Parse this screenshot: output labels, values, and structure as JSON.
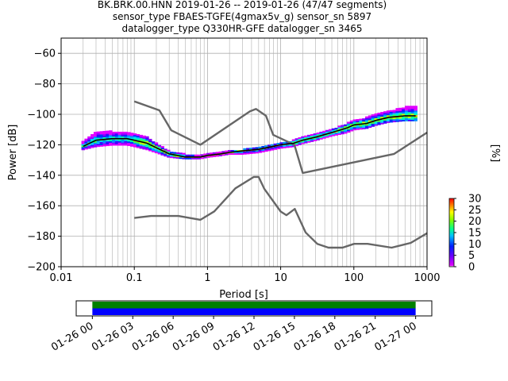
{
  "title_lines": [
    "BK.BRK.00.HNN   2019-01-26 -- 2019-01-26  (47/47 segments)",
    "sensor_type FBAES-TGFE(4gmax5v_g) sensor_sn 5897",
    "datalogger_type Q330HR-GFE datalogger_sn 3465"
  ],
  "colors": {
    "noise_model": "#666666",
    "mode_line": "#000000",
    "grid": "#b0b0b0",
    "coverage_top": "#008000",
    "coverage_bottom": "#0000ff"
  },
  "chart_data": [
    {
      "type": "heatmap",
      "subtype": "probabilistic power spectral density",
      "xlabel": "Period [s]",
      "ylabel": "Power [dB]",
      "xscale": "log",
      "xlim": [
        0.01,
        1000
      ],
      "ylim": [
        -200,
        -50
      ],
      "x_tick_labels": [
        "0.01",
        "0.1",
        "1",
        "10",
        "100",
        "1000"
      ],
      "x_ticks": [
        0.01,
        0.1,
        1,
        10,
        100,
        1000
      ],
      "y_ticks": [
        -200,
        -180,
        -160,
        -140,
        -120,
        -100,
        -80,
        -60
      ],
      "y_tick_labels": [
        "−200",
        "−180",
        "−160",
        "−140",
        "−120",
        "−100",
        "−80",
        "−60"
      ],
      "grid": true,
      "colorbar": {
        "label": "[%]",
        "range": [
          0,
          30
        ],
        "ticks": [
          0,
          5,
          10,
          15,
          20,
          25,
          30
        ],
        "colormap": "pqlx"
      },
      "psd_mode_curve": {
        "period": [
          0.02,
          0.03,
          0.05,
          0.08,
          0.1,
          0.15,
          0.2,
          0.3,
          0.5,
          0.8,
          1,
          1.5,
          2,
          3,
          5,
          8,
          10,
          15,
          20,
          30,
          50,
          80,
          100,
          150,
          200,
          300,
          500,
          700
        ],
        "power": [
          -121,
          -117,
          -116,
          -116,
          -117,
          -119,
          -122,
          -126,
          -128,
          -128,
          -127,
          -126,
          -125,
          -124,
          -123,
          -121,
          -120,
          -119,
          -117,
          -115,
          -112,
          -109,
          -107,
          -106,
          -104,
          -102,
          -101,
          -101
        ]
      },
      "psd_spread": {
        "period": [
          0.02,
          0.03,
          0.05,
          0.08,
          0.1,
          0.15,
          0.2,
          0.3,
          0.5,
          0.8,
          1,
          1.5,
          2,
          3,
          5,
          8,
          10,
          15,
          20,
          30,
          50,
          80,
          100,
          150,
          200,
          300,
          500,
          700
        ],
        "upper": [
          -118,
          -111,
          -111,
          -112,
          -113,
          -115,
          -119,
          -124,
          -126,
          -127,
          -126,
          -125,
          -124,
          -123,
          -122,
          -120,
          -119,
          -117,
          -115,
          -113,
          -110,
          -106,
          -104,
          -102,
          -100,
          -98,
          -95,
          -95
        ],
        "lower": [
          -123,
          -121,
          -120,
          -120,
          -121,
          -123,
          -125,
          -128,
          -129,
          -129,
          -128,
          -127,
          -126,
          -126,
          -125,
          -123,
          -122,
          -121,
          -119,
          -117,
          -114,
          -112,
          -110,
          -109,
          -107,
          -105,
          -104,
          -104
        ]
      },
      "noise_models": [
        {
          "name": "high noise model",
          "period": [
            0.1,
            0.22,
            0.32,
            0.8,
            3.8,
            4.6,
            6.3,
            7.9,
            15.4,
            20,
            354.8,
            1000
          ],
          "power": [
            -91.5,
            -97.4,
            -110.5,
            -120,
            -98,
            -96.5,
            -101,
            -113.5,
            -120,
            -138.5,
            -126,
            -112
          ]
        },
        {
          "name": "low noise model",
          "period": [
            0.1,
            0.17,
            0.4,
            0.8,
            1.24,
            2.4,
            4.3,
            5,
            6,
            10,
            12,
            15.6,
            21.9,
            31.6,
            45,
            70,
            101,
            154,
            328,
            600,
            1000
          ],
          "power": [
            -168,
            -166.7,
            -166.7,
            -169.2,
            -163.7,
            -148.6,
            -141.1,
            -141.1,
            -149,
            -163.8,
            -166.2,
            -162.1,
            -177.5,
            -185,
            -187.5,
            -187.5,
            -185,
            -185,
            -187.5,
            -184.4,
            -178
          ]
        }
      ]
    },
    {
      "type": "bar",
      "subtype": "data coverage timeline",
      "x_tick_labels": [
        "01-26 00",
        "01-26 03",
        "01-26 06",
        "01-26 09",
        "01-26 12",
        "01-26 15",
        "01-26 18",
        "01-26 21",
        "01-27 00"
      ],
      "x_tick_hours": [
        0,
        3,
        6,
        9,
        12,
        15,
        18,
        21,
        24
      ],
      "xlim_hours": [
        -1.2,
        25.2
      ],
      "segments_hours": [
        [
          0,
          24
        ]
      ]
    }
  ]
}
